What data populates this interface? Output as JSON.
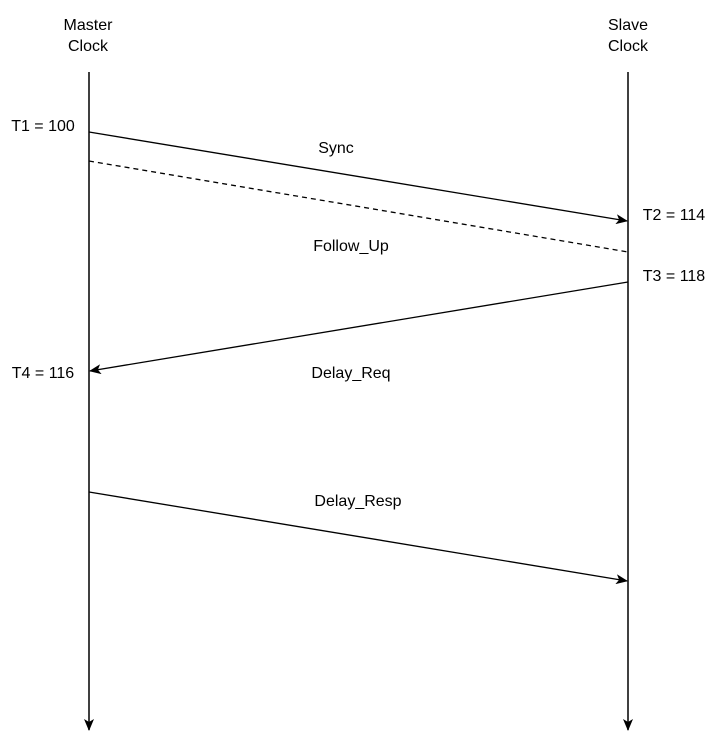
{
  "lifelines": {
    "master": {
      "line1": "Master",
      "line2": "Clock"
    },
    "slave": {
      "line1": "Slave",
      "line2": "Clock"
    }
  },
  "timestamps": {
    "t1": "T1 = 100",
    "t2": "T2 = 114",
    "t3": "T3 = 118",
    "t4": "T4 = 116"
  },
  "messages": {
    "sync": "Sync",
    "follow_up": "Follow_Up",
    "delay_req": "Delay_Req",
    "delay_resp": "Delay_Resp"
  }
}
